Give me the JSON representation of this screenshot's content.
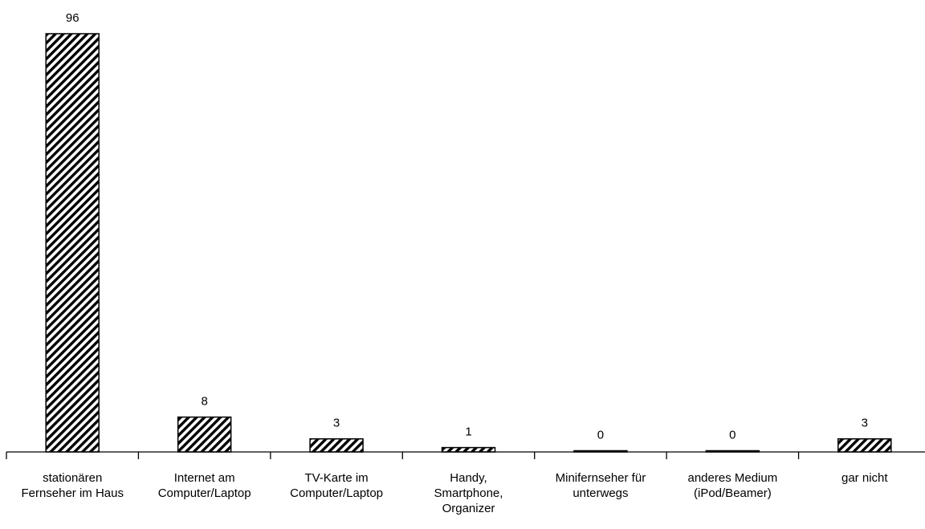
{
  "chart_data": {
    "type": "bar",
    "title": "",
    "xlabel": "",
    "ylabel": "",
    "ylim": [
      0,
      100
    ],
    "grid": false,
    "legend": "none",
    "bar_fill": "diagonal-hatch",
    "colors": {
      "bar_stroke": "#000000",
      "hatch": "#000000",
      "background": "#ffffff"
    },
    "categories": [
      [
        "stationären",
        "Fernseher im Haus"
      ],
      [
        "Internet am",
        "Computer/Laptop"
      ],
      [
        "TV-Karte im",
        "Computer/Laptop"
      ],
      [
        "Handy,",
        "Smartphone,",
        "Organizer"
      ],
      [
        "Minifernseher für",
        "unterwegs"
      ],
      [
        "anderes Medium",
        "(iPod/Beamer)"
      ],
      [
        "gar nicht"
      ]
    ],
    "values": [
      96,
      8,
      3,
      1,
      0,
      0,
      3
    ],
    "value_labels": [
      "96",
      "8",
      "3",
      "1",
      "0",
      "0",
      "3"
    ]
  }
}
